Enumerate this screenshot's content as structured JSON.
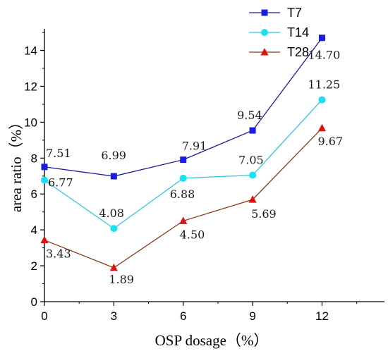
{
  "chart_data": {
    "type": "line",
    "title": "",
    "xlabel": "OSP dosage（%）",
    "ylabel": "area ratio（%）",
    "x": [
      0,
      3,
      6,
      9,
      12
    ],
    "x_ticks": [
      "0",
      "3",
      "6",
      "9",
      "12"
    ],
    "y_ticks": [
      "0",
      "2",
      "4",
      "6",
      "8",
      "10",
      "12",
      "14"
    ],
    "xlim": [
      0,
      14.7
    ],
    "ylim": [
      0,
      15.2
    ],
    "grid": false,
    "legend_position": "top-right",
    "series": [
      {
        "name": "T7",
        "marker": "square",
        "line_color": "#1a1aa6",
        "marker_color": "#1c1ce0",
        "values": [
          7.51,
          6.99,
          7.91,
          9.54,
          14.7
        ],
        "labels": [
          "7.51",
          "6.99",
          "7.91",
          "9.54",
          "14.70"
        ]
      },
      {
        "name": "T14",
        "marker": "circle",
        "line_color": "#33c6e6",
        "marker_color": "#19e1f2",
        "values": [
          6.77,
          4.08,
          6.88,
          7.05,
          11.25
        ],
        "labels": [
          "6.77",
          "4.08",
          "6.88",
          "7.05",
          "11.25"
        ]
      },
      {
        "name": "T28",
        "marker": "triangle",
        "line_color": "#8b3a12",
        "marker_color": "#e01010",
        "values": [
          3.43,
          1.89,
          4.5,
          5.69,
          9.67
        ],
        "labels": [
          "3.43",
          "1.89",
          "4.50",
          "5.69",
          "9.67"
        ]
      }
    ]
  }
}
